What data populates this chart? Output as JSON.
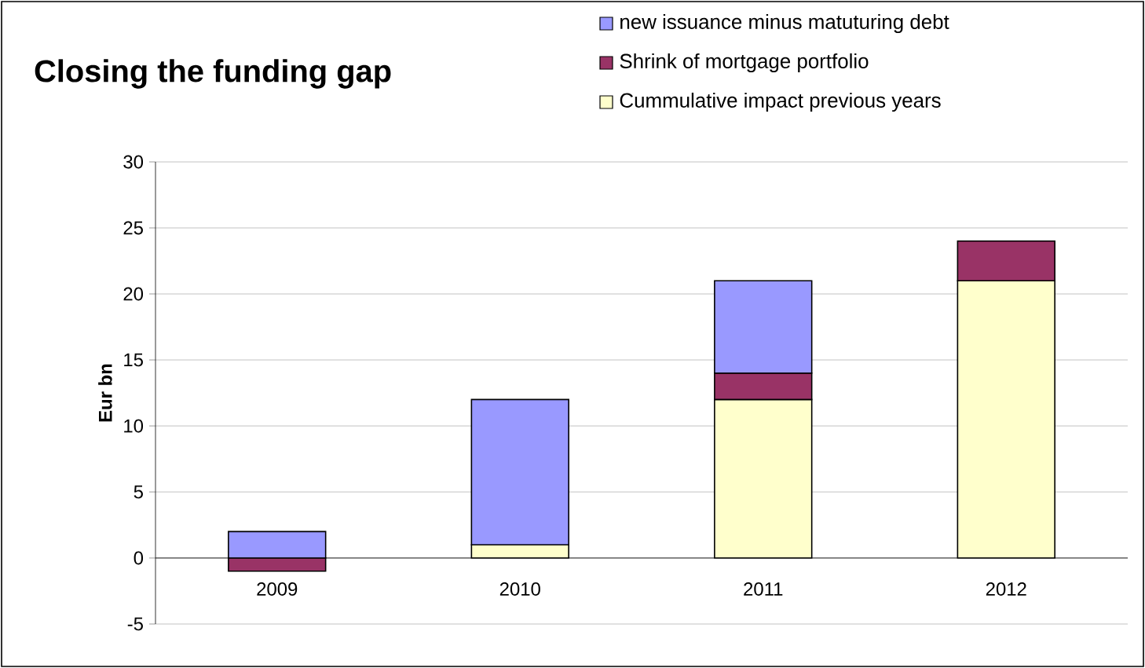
{
  "chart_data": {
    "type": "bar",
    "title": "Closing the funding gap",
    "ylabel": "Eur bn",
    "stacked": true,
    "categories": [
      "2009",
      "2010",
      "2011",
      "2012"
    ],
    "series": [
      {
        "name": "Cummulative impact previous years",
        "color": "#ffffcc",
        "values": [
          0,
          1,
          12,
          21
        ]
      },
      {
        "name": "Shrink of mortgage portfolio",
        "color": "#993366",
        "values": [
          -1,
          0,
          2,
          3
        ]
      },
      {
        "name": "new issuance minus matuturing debt",
        "color": "#9999ff",
        "values": [
          2,
          11,
          7,
          0
        ]
      }
    ],
    "ylim": [
      -5,
      30
    ],
    "yticks": [
      -5,
      0,
      5,
      10,
      15,
      20,
      25,
      30
    ],
    "grid": "y",
    "legend": "top right"
  }
}
